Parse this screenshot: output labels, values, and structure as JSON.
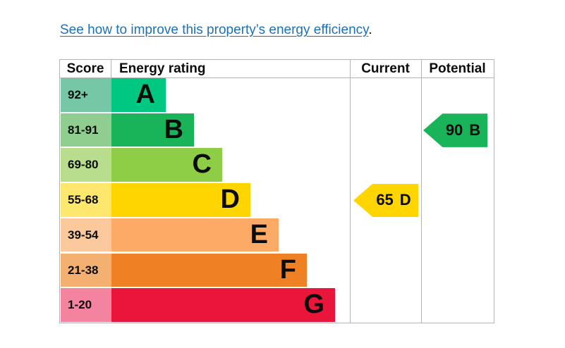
{
  "link": {
    "text": "See how to improve this property’s energy efficiency",
    "suffix": "."
  },
  "table": {
    "headers": {
      "score": "Score",
      "rating": "Energy rating",
      "current": "Current",
      "potential": "Potential"
    }
  },
  "chart_data": {
    "type": "epc-energy-rating",
    "title": "Energy efficiency rating chart",
    "bands": [
      {
        "band": "A",
        "score": "92+",
        "color": "#00c781",
        "score_tint": "#76c7a5"
      },
      {
        "band": "B",
        "score": "81-91",
        "color": "#19b459",
        "score_tint": "#8fce8f"
      },
      {
        "band": "C",
        "score": "69-80",
        "color": "#8dce46",
        "score_tint": "#b8dd8d"
      },
      {
        "band": "D",
        "score": "55-68",
        "color": "#ffd500",
        "score_tint": "#fde76c"
      },
      {
        "band": "E",
        "score": "39-54",
        "color": "#fcaa65",
        "score_tint": "#fcc99c"
      },
      {
        "band": "F",
        "score": "21-38",
        "color": "#ef8023",
        "score_tint": "#f4b070"
      },
      {
        "band": "G",
        "score": "1-20",
        "color": "#e9153b",
        "score_tint": "#f3839e"
      }
    ],
    "current": {
      "value": 65,
      "band": "D",
      "color": "#ffd500"
    },
    "potential": {
      "value": 90,
      "band": "B",
      "color": "#19b459"
    }
  },
  "colors": {
    "link": "#1d70b8",
    "text": "#0b0c0c",
    "border": "#b1b4b6",
    "background": "#ffffff"
  }
}
